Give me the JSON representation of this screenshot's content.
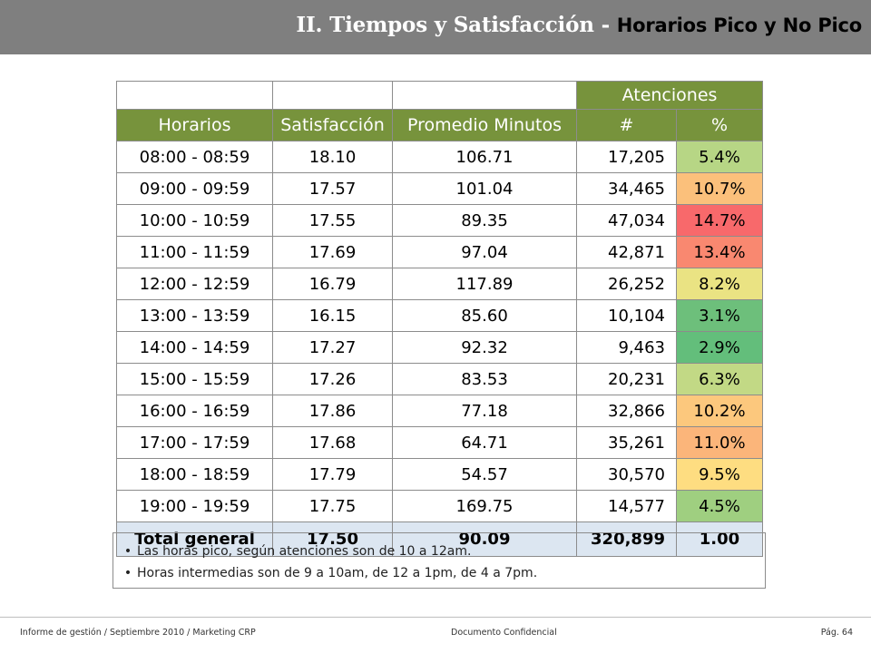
{
  "title": {
    "main": "II. Tiempos y  Satisfacción - ",
    "sub": "Horarios Pico y No Pico"
  },
  "table": {
    "group_header": "Atenciones",
    "headers": [
      "Horarios",
      "Satisfacción",
      "Promedio Minutos",
      "#",
      "%"
    ],
    "rows": [
      {
        "horario": "08:00 - 08:59",
        "satisfaccion": "18.10",
        "minutos": "106.71",
        "num": "17,205",
        "pct": "5.4%",
        "pct_color": "#b7d685"
      },
      {
        "horario": "09:00 - 09:59",
        "satisfaccion": "17.57",
        "minutos": "101.04",
        "num": "34,465",
        "pct": "10.7%",
        "pct_color": "#fbc07b"
      },
      {
        "horario": "10:00 - 10:59",
        "satisfaccion": "17.55",
        "minutos": "89.35",
        "num": "47,034",
        "pct": "14.7%",
        "pct_color": "#f8696b"
      },
      {
        "horario": "11:00 - 11:59",
        "satisfaccion": "17.69",
        "minutos": "97.04",
        "num": "42,871",
        "pct": "13.4%",
        "pct_color": "#f98870"
      },
      {
        "horario": "12:00 - 12:59",
        "satisfaccion": "16.79",
        "minutos": "117.89",
        "num": "26,252",
        "pct": "8.2%",
        "pct_color": "#eae383"
      },
      {
        "horario": "13:00 - 13:59",
        "satisfaccion": "16.15",
        "minutos": "85.60",
        "num": "10,104",
        "pct": "3.1%",
        "pct_color": "#6dbf7b"
      },
      {
        "horario": "14:00 - 14:59",
        "satisfaccion": "17.27",
        "minutos": "92.32",
        "num": "9,463",
        "pct": "2.9%",
        "pct_color": "#63be7b"
      },
      {
        "horario": "15:00 - 15:59",
        "satisfaccion": "17.26",
        "minutos": "83.53",
        "num": "20,231",
        "pct": "6.3%",
        "pct_color": "#c2d985"
      },
      {
        "horario": "16:00 - 16:59",
        "satisfaccion": "17.86",
        "minutos": "77.18",
        "num": "32,866",
        "pct": "10.2%",
        "pct_color": "#fcc87d"
      },
      {
        "horario": "17:00 - 17:59",
        "satisfaccion": "17.68",
        "minutos": "64.71",
        "num": "35,261",
        "pct": "11.0%",
        "pct_color": "#fbb57a"
      },
      {
        "horario": "18:00 - 18:59",
        "satisfaccion": "17.79",
        "minutos": "54.57",
        "num": "30,570",
        "pct": "9.5%",
        "pct_color": "#fedd81"
      },
      {
        "horario": "19:00 - 19:59",
        "satisfaccion": "17.75",
        "minutos": "169.75",
        "num": "14,577",
        "pct": "4.5%",
        "pct_color": "#9fcf80"
      }
    ],
    "total": {
      "horario": "Total general",
      "satisfaccion": "17.50",
      "minutos": "90.09",
      "num": "320,899",
      "pct": "1.00"
    }
  },
  "notes": [
    "Las horas pico, según atenciones son de 10 a 12am.",
    "Horas intermedias son de 9 a 10am, de 12 a 1pm, de 4 a 7pm."
  ],
  "footer": {
    "left": "Informe de gestión / Septiembre 2010 / Marketing CRP",
    "center": "Documento Confidencial",
    "right": "Pág. 64"
  },
  "colors": {
    "header_green": "#77933c",
    "total_blue": "#dce6f1",
    "title_gray": "#7f7f7f"
  }
}
